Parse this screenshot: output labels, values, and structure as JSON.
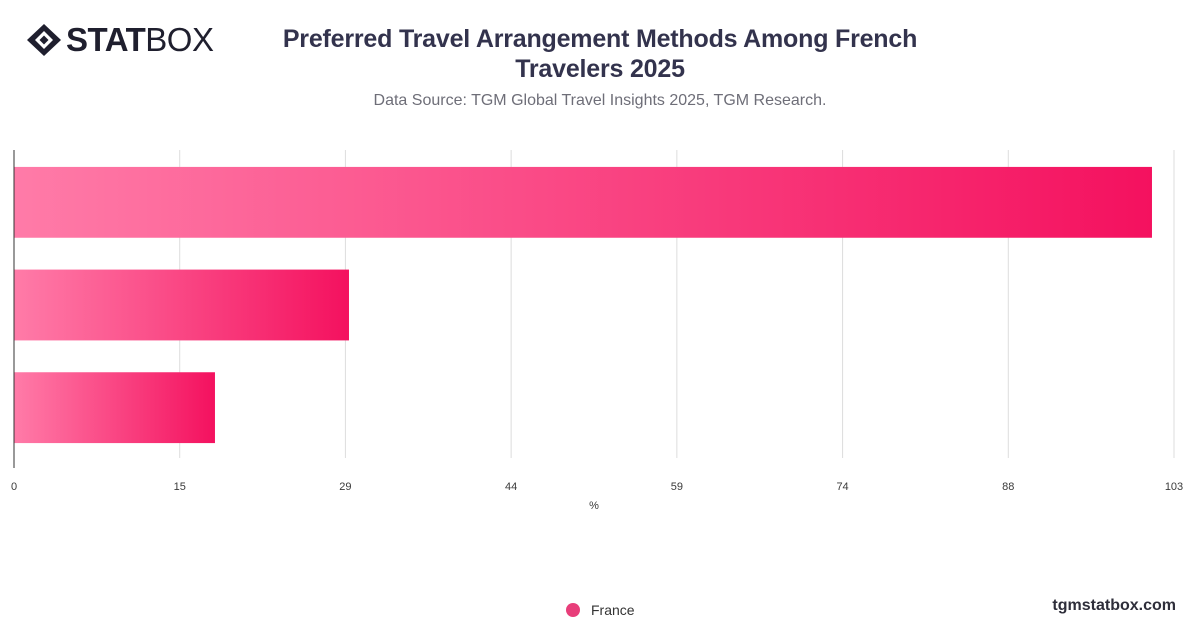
{
  "brand": {
    "logo_bold": "STAT",
    "logo_light": "BOX",
    "footer": "tgmstatbox.com"
  },
  "header": {
    "title_line1": "Preferred Travel Arrangement Methods Among French",
    "title_line2": "Travelers 2025",
    "subtitle": "Data Source: TGM Global Travel Insights 2025, TGM Research."
  },
  "colors": {
    "bar_start": "#ff7ba8",
    "bar_end": "#f4115f",
    "legend": "#e83e7a",
    "grid": "#dddddd",
    "axis": "#333333"
  },
  "chart_data": {
    "type": "bar",
    "orientation": "horizontal",
    "categories": [
      "",
      "",
      ""
    ],
    "series": [
      {
        "name": "France",
        "values": [
          101,
          29.7,
          17.8
        ]
      }
    ],
    "xlabel": "%",
    "ylabel": "",
    "xlim": [
      0,
      103
    ],
    "x_ticks": [
      "0",
      "15",
      "29",
      "44",
      "59",
      "74",
      "88",
      "103"
    ],
    "grid": true,
    "legend_position": "bottom"
  },
  "legend": {
    "items": [
      {
        "label": "France"
      }
    ]
  }
}
